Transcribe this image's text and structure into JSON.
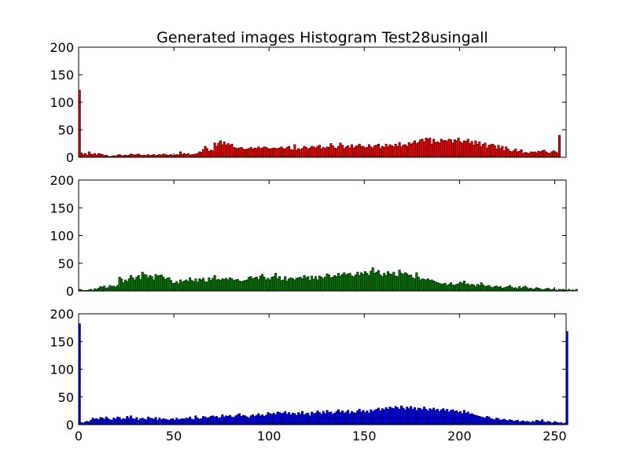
{
  "chart_data": {
    "type": "bar",
    "title": "Generated images Histogram Test28usingall",
    "xlabel": "",
    "ylabel": "",
    "xlim": [
      0,
      256
    ],
    "xticks": [
      "0",
      "50",
      "100",
      "150",
      "200",
      "250"
    ],
    "panels": [
      {
        "name": "",
        "color": "#ff0000",
        "ylim": [
          0,
          200
        ],
        "yticks": [
          "0",
          "50",
          "100",
          "150",
          "200"
        ],
        "grid": false,
        "values": [
          122,
          8,
          5,
          7,
          4,
          10,
          6,
          5,
          7,
          4,
          7,
          6,
          5,
          3,
          4,
          2,
          1,
          2,
          3,
          2,
          4,
          5,
          3,
          3,
          4,
          3,
          4,
          6,
          5,
          4,
          5,
          6,
          4,
          3,
          4,
          3,
          5,
          3,
          4,
          5,
          3,
          4,
          5,
          4,
          6,
          5,
          4,
          4,
          5,
          3,
          4,
          5,
          4,
          10,
          5,
          7,
          5,
          7,
          4,
          5,
          5,
          6,
          7,
          10,
          9,
          14,
          20,
          16,
          11,
          13,
          12,
          26,
          20,
          26,
          30,
          23,
          28,
          22,
          25,
          22,
          24,
          18,
          17,
          16,
          17,
          18,
          15,
          14,
          15,
          16,
          18,
          15,
          17,
          16,
          19,
          16,
          17,
          19,
          18,
          16,
          15,
          16,
          17,
          16,
          16,
          17,
          19,
          16,
          15,
          18,
          20,
          14,
          13,
          23,
          13,
          16,
          14,
          16,
          20,
          18,
          15,
          17,
          20,
          19,
          17,
          20,
          22,
          15,
          18,
          16,
          19,
          18,
          25,
          21,
          17,
          16,
          20,
          26,
          22,
          16,
          19,
          21,
          17,
          23,
          17,
          20,
          21,
          24,
          20,
          20,
          17,
          18,
          23,
          19,
          17,
          21,
          22,
          24,
          16,
          20,
          18,
          24,
          19,
          23,
          21,
          19,
          24,
          20,
          27,
          19,
          22,
          23,
          20,
          27,
          24,
          26,
          30,
          25,
          27,
          32,
          33,
          28,
          35,
          33,
          35,
          24,
          33,
          27,
          28,
          26,
          33,
          30,
          31,
          29,
          33,
          32,
          26,
          32,
          30,
          35,
          28,
          26,
          30,
          29,
          33,
          25,
          29,
          22,
          30,
          24,
          28,
          20,
          24,
          26,
          17,
          22,
          23,
          24,
          21,
          15,
          22,
          16,
          20,
          12,
          19,
          15,
          11,
          10,
          12,
          15,
          10,
          11,
          14,
          7,
          9,
          8,
          7,
          10,
          9,
          10,
          8,
          11,
          10,
          12,
          13,
          10,
          8,
          7,
          10,
          12,
          10,
          8,
          40
        ]
      },
      {
        "name": "",
        "color": "#008000",
        "ylim": [
          0,
          200
        ],
        "yticks": [
          "0",
          "50",
          "100",
          "150",
          "200"
        ],
        "grid": false,
        "values": [
          3,
          2,
          1,
          1,
          1,
          2,
          3,
          1,
          4,
          3,
          5,
          8,
          7,
          9,
          5,
          6,
          10,
          8,
          9,
          7,
          10,
          25,
          22,
          15,
          20,
          17,
          22,
          28,
          24,
          20,
          25,
          28,
          21,
          34,
          30,
          29,
          24,
          28,
          26,
          20,
          30,
          27,
          28,
          29,
          25,
          21,
          23,
          24,
          19,
          14,
          14,
          17,
          13,
          20,
          16,
          18,
          20,
          17,
          24,
          19,
          17,
          22,
          16,
          22,
          20,
          23,
          17,
          16,
          24,
          19,
          23,
          28,
          20,
          21,
          19,
          22,
          21,
          23,
          20,
          24,
          22,
          19,
          20,
          21,
          18,
          17,
          18,
          19,
          20,
          25,
          26,
          22,
          24,
          25,
          21,
          27,
          30,
          25,
          20,
          23,
          20,
          25,
          26,
          32,
          22,
          26,
          19,
          20,
          26,
          18,
          22,
          24,
          22,
          20,
          23,
          24,
          25,
          22,
          28,
          24,
          26,
          19,
          27,
          21,
          26,
          20,
          27,
          25,
          22,
          25,
          31,
          29,
          24,
          25,
          28,
          26,
          32,
          27,
          30,
          33,
          29,
          31,
          32,
          27,
          26,
          29,
          34,
          28,
          33,
          30,
          35,
          32,
          28,
          36,
          42,
          32,
          34,
          37,
          29,
          26,
          32,
          28,
          35,
          31,
          30,
          34,
          27,
          26,
          38,
          32,
          30,
          33,
          31,
          28,
          29,
          24,
          22,
          33,
          25,
          20,
          22,
          21,
          20,
          22,
          19,
          20,
          18,
          16,
          15,
          14,
          12,
          13,
          14,
          10,
          12,
          15,
          11,
          10,
          12,
          13,
          16,
          14,
          18,
          12,
          13,
          10,
          12,
          11,
          8,
          12,
          10,
          15,
          11,
          8,
          9,
          10,
          7,
          6,
          8,
          9,
          7,
          8,
          5,
          6,
          7,
          8,
          10,
          7,
          5,
          6,
          4,
          8,
          5,
          7,
          9,
          6,
          4,
          5,
          3,
          4,
          6,
          5,
          4,
          2,
          3,
          4,
          5,
          3,
          2,
          4,
          2,
          1,
          3,
          2,
          3,
          2,
          1,
          3,
          1,
          2,
          1,
          3
        ]
      },
      {
        "name": "",
        "color": "#0000ff",
        "ylim": [
          0,
          200
        ],
        "yticks": [
          "0",
          "50",
          "100",
          "150",
          "200"
        ],
        "grid": false,
        "values": [
          182,
          4,
          3,
          5,
          6,
          5,
          8,
          12,
          10,
          11,
          9,
          13,
          12,
          10,
          14,
          11,
          9,
          8,
          12,
          10,
          14,
          13,
          9,
          11,
          10,
          15,
          12,
          16,
          11,
          10,
          13,
          8,
          11,
          12,
          10,
          9,
          14,
          12,
          11,
          10,
          13,
          8,
          12,
          9,
          11,
          10,
          9,
          8,
          10,
          11,
          8,
          12,
          9,
          10,
          11,
          10,
          12,
          11,
          14,
          10,
          9,
          16,
          12,
          10,
          11,
          15,
          14,
          12,
          13,
          15,
          16,
          14,
          15,
          12,
          13,
          18,
          14,
          16,
          15,
          17,
          14,
          13,
          16,
          18,
          20,
          15,
          17,
          16,
          14,
          12,
          16,
          18,
          15,
          17,
          20,
          16,
          18,
          15,
          17,
          22,
          20,
          19,
          21,
          18,
          23,
          22,
          20,
          21,
          24,
          19,
          22,
          18,
          21,
          20,
          17,
          22,
          19,
          24,
          18,
          20,
          21,
          16,
          23,
          20,
          21,
          25,
          22,
          19,
          24,
          20,
          26,
          22,
          23,
          19,
          21,
          24,
          27,
          22,
          25,
          21,
          23,
          26,
          20,
          24,
          22,
          21,
          25,
          28,
          23,
          26,
          22,
          25,
          21,
          27,
          24,
          26,
          28,
          30,
          25,
          29,
          27,
          31,
          28,
          32,
          30,
          29,
          33,
          31,
          28,
          34,
          30,
          27,
          32,
          29,
          33,
          28,
          31,
          26,
          30,
          29,
          27,
          32,
          28,
          25,
          29,
          27,
          30,
          26,
          28,
          24,
          27,
          29,
          25,
          28,
          23,
          26,
          27,
          24,
          25,
          22,
          24,
          20,
          26,
          21,
          23,
          19,
          20,
          18,
          17,
          16,
          15,
          14,
          13,
          12,
          15,
          14,
          11,
          10,
          9,
          12,
          11,
          8,
          9,
          10,
          8,
          7,
          9,
          8,
          6,
          7,
          8,
          5,
          6,
          7,
          5,
          6,
          5,
          4,
          6,
          5,
          8,
          7,
          6,
          9,
          5,
          4,
          6,
          5,
          3,
          4,
          5,
          4,
          3,
          4,
          2,
          3,
          168
        ]
      }
    ]
  }
}
